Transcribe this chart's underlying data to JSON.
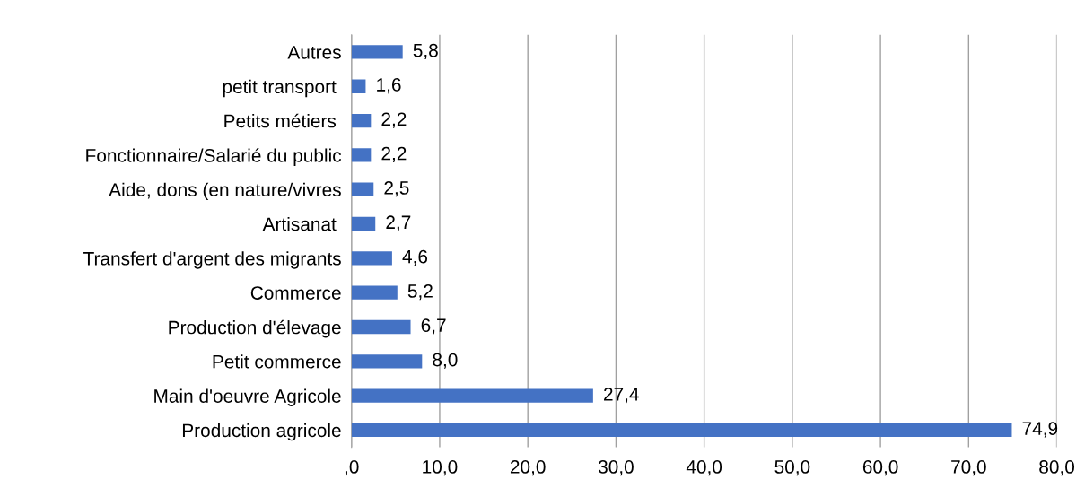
{
  "chart_data": {
    "type": "bar",
    "orientation": "horizontal",
    "categories": [
      "Autres",
      "petit transport ",
      "Petits métiers ",
      "Fonctionnaire/Salarié du public",
      "Aide, dons (en nature/vivres",
      "Artisanat ",
      "Transfert d'argent des migrants",
      "Commerce",
      "Production d'élevage",
      "Petit commerce",
      "Main d'oeuvre Agricole",
      "Production agricole"
    ],
    "values": [
      5.8,
      1.6,
      2.2,
      2.2,
      2.5,
      2.7,
      4.6,
      5.2,
      6.7,
      8.0,
      27.4,
      74.9
    ],
    "value_labels": [
      "5,8",
      "1,6",
      "2,2",
      "2,2",
      "2,5",
      "2,7",
      "4,6",
      "5,2",
      "6,7",
      "8,0",
      "27,4",
      "74,9"
    ],
    "color": "#4472c4",
    "xlim": [
      0,
      80
    ],
    "xticks": [
      {
        "value": 0,
        "label": ",0"
      },
      {
        "value": 10,
        "label": "10,0"
      },
      {
        "value": 20,
        "label": "20,0"
      },
      {
        "value": 30,
        "label": "30,0"
      },
      {
        "value": 40,
        "label": "40,0"
      },
      {
        "value": 50,
        "label": "50,0"
      },
      {
        "value": 60,
        "label": "60,0"
      },
      {
        "value": 70,
        "label": "70,0"
      },
      {
        "value": 80,
        "label": "80,0"
      }
    ],
    "grid": "x"
  }
}
